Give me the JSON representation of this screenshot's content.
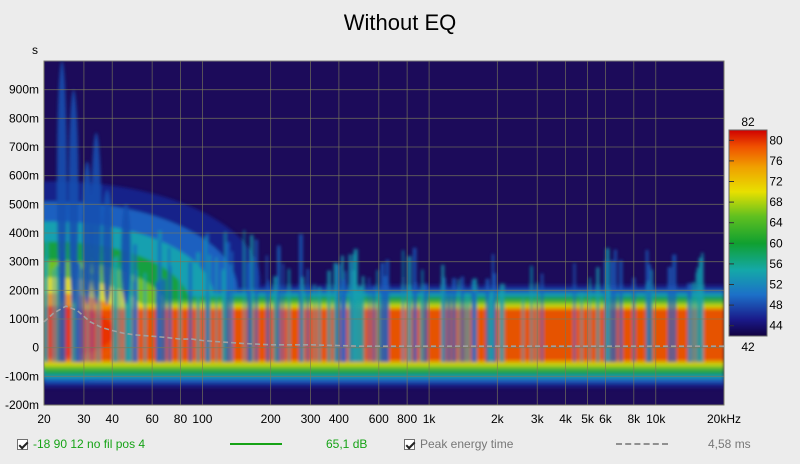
{
  "chart_data": {
    "type": "heatmap",
    "title": "Without EQ",
    "x_scale": "log",
    "xlim": [
      20,
      20000
    ],
    "ylim": [
      -0.2,
      1.0
    ],
    "ylabel_unit": "s",
    "x_ticks": [
      {
        "v": 20,
        "label": "20"
      },
      {
        "v": 30,
        "label": "30"
      },
      {
        "v": 40,
        "label": "40"
      },
      {
        "v": 60,
        "label": "60"
      },
      {
        "v": 80,
        "label": "80"
      },
      {
        "v": 100,
        "label": "100"
      },
      {
        "v": 200,
        "label": "200"
      },
      {
        "v": 300,
        "label": "300"
      },
      {
        "v": 400,
        "label": "400"
      },
      {
        "v": 600,
        "label": "600"
      },
      {
        "v": 800,
        "label": "800"
      },
      {
        "v": 1000,
        "label": "1k"
      },
      {
        "v": 2000,
        "label": "2k"
      },
      {
        "v": 3000,
        "label": "3k"
      },
      {
        "v": 4000,
        "label": "4k"
      },
      {
        "v": 5000,
        "label": "5k"
      },
      {
        "v": 6000,
        "label": "6k"
      },
      {
        "v": 8000,
        "label": "8k"
      },
      {
        "v": 10000,
        "label": "10k"
      },
      {
        "v": 20000,
        "label": "20kHz"
      }
    ],
    "y_ticks": [
      {
        "v": 0.9,
        "label": "900m"
      },
      {
        "v": 0.8,
        "label": "800m"
      },
      {
        "v": 0.7,
        "label": "700m"
      },
      {
        "v": 0.6,
        "label": "600m"
      },
      {
        "v": 0.5,
        "label": "500m"
      },
      {
        "v": 0.4,
        "label": "400m"
      },
      {
        "v": 0.3,
        "label": "300m"
      },
      {
        "v": 0.2,
        "label": "200m"
      },
      {
        "v": 0.1,
        "label": "100m"
      },
      {
        "v": 0.0,
        "label": "0"
      },
      {
        "v": -0.1,
        "label": "-100m"
      },
      {
        "v": -0.2,
        "label": "-200m"
      }
    ],
    "colorbar": {
      "min": 42,
      "max": 82,
      "min_label": "42",
      "max_label": "82",
      "ticks": [
        80,
        76,
        72,
        68,
        64,
        60,
        56,
        52,
        48,
        44
      ]
    },
    "peak_energy_time": {
      "x": [
        20,
        22,
        25,
        28,
        32,
        36,
        40,
        45,
        50,
        60,
        70,
        80,
        90,
        100,
        120,
        150,
        200,
        300,
        500,
        1000,
        2000,
        5000,
        10000,
        20000
      ],
      "y": [
        0.09,
        0.12,
        0.145,
        0.13,
        0.09,
        0.07,
        0.06,
        0.05,
        0.045,
        0.04,
        0.035,
        0.03,
        0.03,
        0.025,
        0.02,
        0.015,
        0.01,
        0.01,
        0.005,
        0.005,
        0.005,
        0.005,
        0.005,
        0.005
      ]
    },
    "grid": true
  },
  "legend": {
    "series_label": "-18 90 12 no fil pos 4",
    "series_color": "#16a316",
    "series_value": "65,1 dB",
    "peak_label": "Peak energy time",
    "peak_value": "4,58 ms",
    "peak_color": "#909090"
  }
}
